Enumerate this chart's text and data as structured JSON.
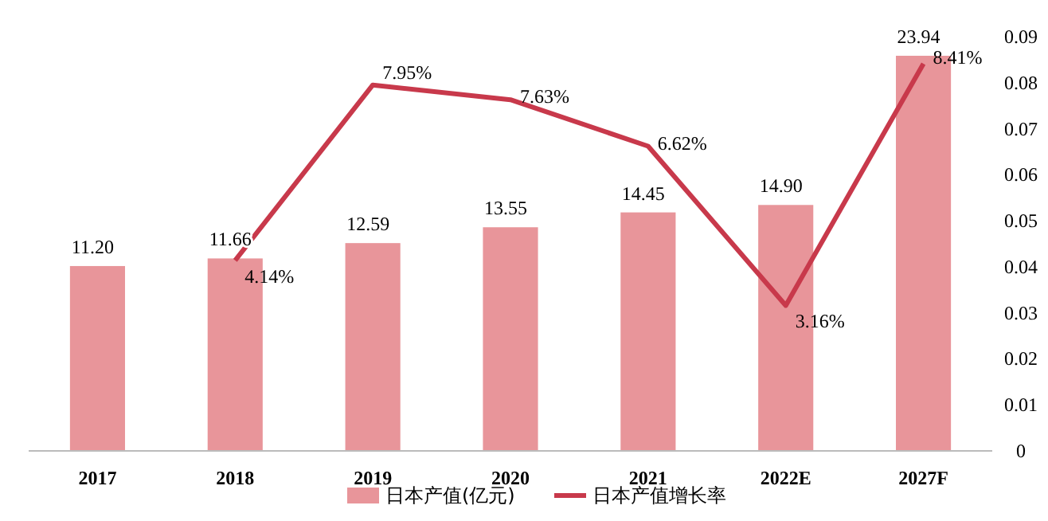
{
  "chart_data": {
    "type": "bar",
    "categories": [
      "2017",
      "2018",
      "2019",
      "2020",
      "2021",
      "2022E",
      "2027F"
    ],
    "y2lim": [
      0,
      0.09
    ],
    "y2ticks": [
      0,
      0.01,
      0.02,
      0.03,
      0.04,
      0.05,
      0.06,
      0.07,
      0.08,
      0.09
    ],
    "legend": "bottom",
    "grid": false,
    "series": [
      {
        "name": "日本产值(亿元)",
        "color": "#e8959a",
        "values": [
          11.2,
          11.66,
          12.59,
          13.55,
          14.45,
          14.9,
          23.94
        ],
        "value_labels": [
          "11.20",
          "11.66",
          "12.59",
          "13.55",
          "14.45",
          "14.90",
          "23.94"
        ]
      },
      {
        "name": "日本产值增长率",
        "type": "line",
        "axis": "y2",
        "color": "#c8394b",
        "values": [
          null,
          0.0414,
          0.0795,
          0.0763,
          0.0662,
          0.0316,
          0.0841
        ],
        "value_labels": [
          null,
          "4.14%",
          "7.95%",
          "7.63%",
          "6.62%",
          "3.16%",
          "8.41%"
        ]
      }
    ]
  }
}
